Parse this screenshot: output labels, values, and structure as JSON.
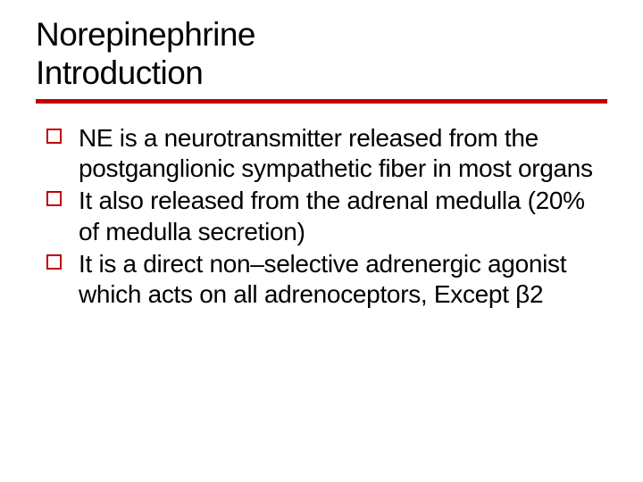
{
  "slide": {
    "title_line1": "Norepinephrine",
    "title_line2": "Introduction",
    "divider_color": "#c00000",
    "bullet_marker_color": "#c00000",
    "text_color": "#000000",
    "background_color": "#ffffff",
    "title_fontsize": 37,
    "body_fontsize": 28,
    "bullets": [
      "NE is a neurotransmitter released from the postganglionic sympathetic fiber in most organs",
      "It also released from the adrenal medulla (20% of medulla secretion)",
      "It is a direct non–selective adrenergic agonist which acts on all adrenoceptors, Except β2"
    ]
  }
}
